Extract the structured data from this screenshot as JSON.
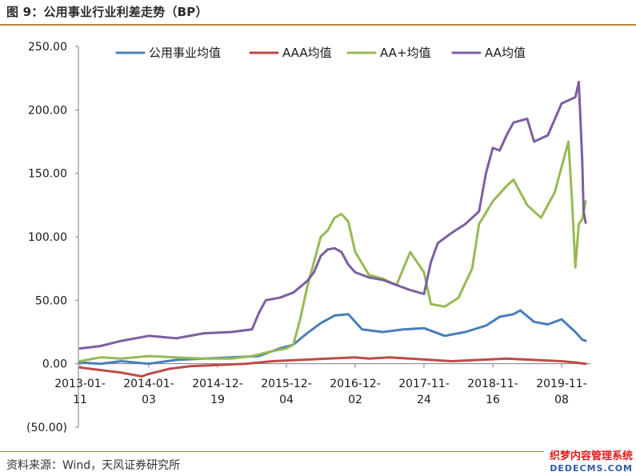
{
  "header": {
    "title": "图 9：公用事业行业利差走势（BP）"
  },
  "footer": {
    "source": "资料来源：Wind，天风证券研究所"
  },
  "watermark_text": {
    "line1": "织梦内容管理系统",
    "line2": "DEDECMS.COM"
  },
  "chart_data": {
    "type": "line",
    "title": "图 9：公用事业行业利差走势（BP）",
    "xlabel": "",
    "ylabel": "",
    "ylim": [
      -50,
      250
    ],
    "y_ticks": [
      "250.00",
      "200.00",
      "150.00",
      "100.00",
      "50.00",
      "0.00",
      "(50.00)"
    ],
    "y_tick_values": [
      250,
      200,
      150,
      100,
      50,
      0,
      -50
    ],
    "x_range": [
      0,
      7.35
    ],
    "x_ticks": [
      {
        "value": 0,
        "line1": "2013-01-",
        "line2": "11"
      },
      {
        "value": 1,
        "line1": "2014-01-",
        "line2": "03"
      },
      {
        "value": 2,
        "line1": "2014-12-",
        "line2": "19"
      },
      {
        "value": 3,
        "line1": "2015-12-",
        "line2": "04"
      },
      {
        "value": 4,
        "line1": "2016-12-",
        "line2": "02"
      },
      {
        "value": 5,
        "line1": "2017-11-",
        "line2": "24"
      },
      {
        "value": 6,
        "line1": "2018-11-",
        "line2": "16"
      },
      {
        "value": 7,
        "line1": "2019-11-",
        "line2": "08"
      }
    ],
    "legend_position": "top",
    "series": [
      {
        "name": "公用事业均值",
        "color": "#4a7ebb",
        "points": [
          [
            0,
            1
          ],
          [
            0.3,
            0
          ],
          [
            0.6,
            2
          ],
          [
            1.0,
            0
          ],
          [
            1.4,
            3
          ],
          [
            1.8,
            4
          ],
          [
            2.2,
            5
          ],
          [
            2.6,
            6
          ],
          [
            2.9,
            12
          ],
          [
            3.1,
            15
          ],
          [
            3.3,
            24
          ],
          [
            3.5,
            32
          ],
          [
            3.7,
            38
          ],
          [
            3.9,
            39
          ],
          [
            4.1,
            27
          ],
          [
            4.4,
            25
          ],
          [
            4.7,
            27
          ],
          [
            5.0,
            28
          ],
          [
            5.3,
            22
          ],
          [
            5.6,
            25
          ],
          [
            5.9,
            30
          ],
          [
            6.1,
            37
          ],
          [
            6.3,
            39
          ],
          [
            6.4,
            42
          ],
          [
            6.6,
            33
          ],
          [
            6.8,
            31
          ],
          [
            7.0,
            35
          ],
          [
            7.2,
            25
          ],
          [
            7.3,
            19
          ],
          [
            7.35,
            18
          ]
        ]
      },
      {
        "name": "AAA均值",
        "color": "#be4b48",
        "points": [
          [
            0,
            -3
          ],
          [
            0.3,
            -5
          ],
          [
            0.6,
            -7
          ],
          [
            0.9,
            -10
          ],
          [
            1.0,
            -8
          ],
          [
            1.3,
            -4
          ],
          [
            1.6,
            -2
          ],
          [
            2.0,
            -1
          ],
          [
            2.4,
            0
          ],
          [
            2.8,
            2
          ],
          [
            3.2,
            3
          ],
          [
            3.6,
            4
          ],
          [
            4.0,
            5
          ],
          [
            4.2,
            4
          ],
          [
            4.5,
            5
          ],
          [
            4.8,
            4
          ],
          [
            5.1,
            3
          ],
          [
            5.4,
            2
          ],
          [
            5.8,
            3
          ],
          [
            6.2,
            4
          ],
          [
            6.6,
            3
          ],
          [
            7.0,
            2
          ],
          [
            7.2,
            1
          ],
          [
            7.35,
            0
          ]
        ]
      },
      {
        "name": "AA+均值",
        "color": "#98b954",
        "points": [
          [
            0,
            2
          ],
          [
            0.3,
            5
          ],
          [
            0.6,
            4
          ],
          [
            1.0,
            6
          ],
          [
            1.4,
            5
          ],
          [
            1.8,
            4
          ],
          [
            2.2,
            4
          ],
          [
            2.5,
            6
          ],
          [
            2.8,
            10
          ],
          [
            3.0,
            12
          ],
          [
            3.1,
            15
          ],
          [
            3.2,
            35
          ],
          [
            3.3,
            60
          ],
          [
            3.4,
            80
          ],
          [
            3.5,
            100
          ],
          [
            3.6,
            105
          ],
          [
            3.7,
            115
          ],
          [
            3.8,
            118
          ],
          [
            3.9,
            112
          ],
          [
            4.0,
            88
          ],
          [
            4.2,
            70
          ],
          [
            4.4,
            67
          ],
          [
            4.6,
            62
          ],
          [
            4.8,
            88
          ],
          [
            5.0,
            72
          ],
          [
            5.1,
            47
          ],
          [
            5.3,
            45
          ],
          [
            5.5,
            52
          ],
          [
            5.7,
            75
          ],
          [
            5.8,
            110
          ],
          [
            6.0,
            128
          ],
          [
            6.2,
            140
          ],
          [
            6.3,
            145
          ],
          [
            6.5,
            125
          ],
          [
            6.7,
            115
          ],
          [
            6.9,
            135
          ],
          [
            7.0,
            155
          ],
          [
            7.1,
            175
          ],
          [
            7.15,
            130
          ],
          [
            7.2,
            76
          ],
          [
            7.25,
            110
          ],
          [
            7.3,
            114
          ],
          [
            7.35,
            128
          ]
        ]
      },
      {
        "name": "AA均值",
        "color": "#7d5fa0",
        "points": [
          [
            0,
            12
          ],
          [
            0.3,
            14
          ],
          [
            0.6,
            18
          ],
          [
            1.0,
            22
          ],
          [
            1.4,
            20
          ],
          [
            1.8,
            24
          ],
          [
            2.2,
            25
          ],
          [
            2.5,
            27
          ],
          [
            2.6,
            40
          ],
          [
            2.7,
            50
          ],
          [
            2.9,
            52
          ],
          [
            3.1,
            56
          ],
          [
            3.3,
            65
          ],
          [
            3.4,
            72
          ],
          [
            3.5,
            85
          ],
          [
            3.6,
            90
          ],
          [
            3.7,
            91
          ],
          [
            3.8,
            88
          ],
          [
            3.9,
            78
          ],
          [
            4.0,
            72
          ],
          [
            4.2,
            68
          ],
          [
            4.4,
            66
          ],
          [
            4.6,
            62
          ],
          [
            4.8,
            58
          ],
          [
            5.0,
            55
          ],
          [
            5.1,
            80
          ],
          [
            5.2,
            95
          ],
          [
            5.4,
            103
          ],
          [
            5.6,
            110
          ],
          [
            5.7,
            115
          ],
          [
            5.8,
            120
          ],
          [
            5.9,
            150
          ],
          [
            6.0,
            170
          ],
          [
            6.1,
            168
          ],
          [
            6.2,
            180
          ],
          [
            6.3,
            190
          ],
          [
            6.5,
            193
          ],
          [
            6.6,
            175
          ],
          [
            6.8,
            180
          ],
          [
            7.0,
            205
          ],
          [
            7.2,
            210
          ],
          [
            7.25,
            222
          ],
          [
            7.3,
            160
          ],
          [
            7.32,
            120
          ],
          [
            7.35,
            111
          ]
        ]
      }
    ]
  }
}
